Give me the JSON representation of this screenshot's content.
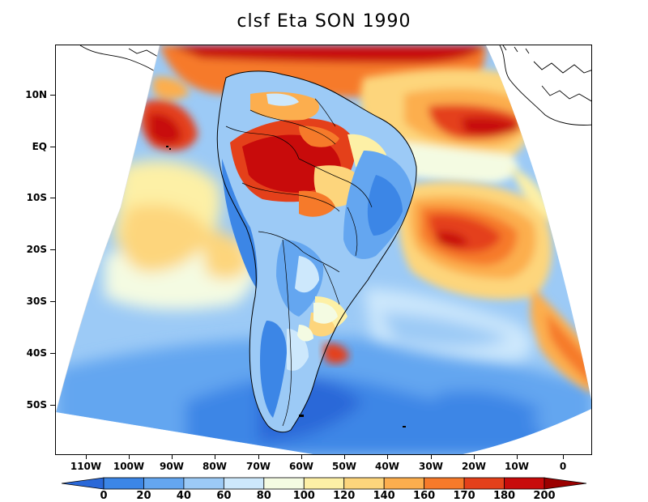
{
  "title": "clsf Eta SON 1990",
  "lat_ticks": [
    "10N",
    "EQ",
    "10S",
    "20S",
    "30S",
    "40S",
    "50S"
  ],
  "lon_ticks": [
    "110W",
    "100W",
    "90W",
    "80W",
    "70W",
    "60W",
    "50W",
    "40W",
    "30W",
    "20W",
    "10W",
    "0"
  ],
  "colorbar": {
    "levels": [
      "0",
      "20",
      "40",
      "60",
      "80",
      "100",
      "120",
      "140",
      "160",
      "170",
      "180",
      "200"
    ],
    "colors": [
      "#2a68d8",
      "#3c86e6",
      "#64a6f0",
      "#9ccaf6",
      "#cde8fc",
      "#f4fbe2",
      "#fdf0a6",
      "#fdd57c",
      "#fcae4e",
      "#f67a2a",
      "#e4401a",
      "#c80b0b",
      "#9b0000"
    ]
  },
  "map_colors": {
    "ocean_low": "#2a68d8",
    "ocean_mid": "#64a6f0",
    "ocean_light": "#9ccaf6",
    "pale": "#cde8fc",
    "cream": "#f4fbe2",
    "yellow": "#fdf0a6",
    "orange_light": "#fdd57c",
    "orange": "#fcae4e",
    "orange_dark": "#f67a2a",
    "red": "#e4401a",
    "dark_red": "#c80b0b",
    "land_outline": "#000000"
  }
}
